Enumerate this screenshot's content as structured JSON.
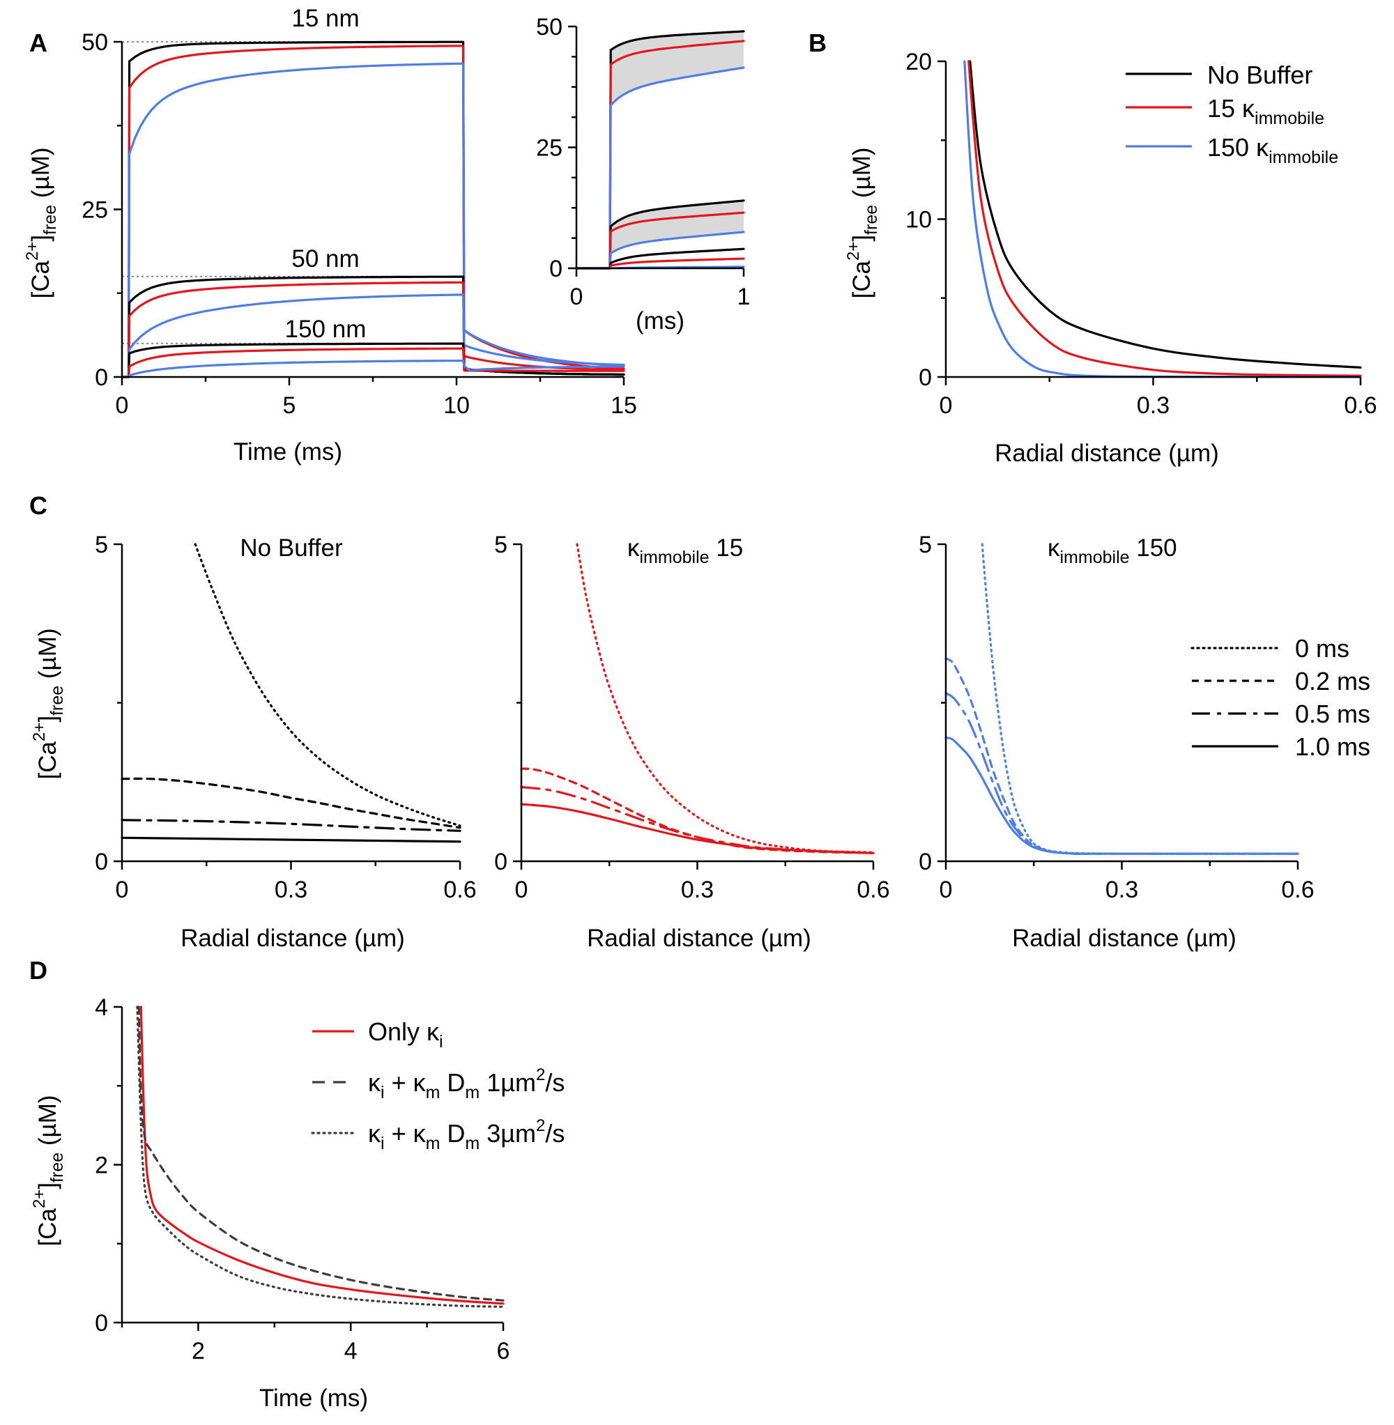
{
  "colors": {
    "nobuf": "#000000",
    "k15": "#e3171b",
    "k150": "#4e7ee5",
    "dark": "#3d3d3d",
    "shade": "#d9d9d9",
    "ref": "#888888"
  },
  "panel_letters": {
    "A": "A",
    "B": "B",
    "C": "C",
    "D": "D"
  },
  "chart_data": [
    {
      "id": "A-main",
      "type": "line",
      "xlabel": "Time (ms)",
      "xlim": [
        0,
        15
      ],
      "xticks": [
        "0",
        "5",
        "10",
        "15"
      ],
      "ylim": [
        0,
        50
      ],
      "yticks": [
        "0",
        "25",
        "50"
      ],
      "annotations": [
        {
          "text": "15 nm",
          "x": 6,
          "y": 52.5
        },
        {
          "text": "50 nm",
          "x": 6,
          "y": 17.5
        },
        {
          "text": "150 nm",
          "x": 6,
          "y": 7.3
        }
      ],
      "reference_lines": [
        50,
        15,
        5
      ],
      "series": [
        {
          "name": "No Buffer 15 nm",
          "color": "nobuf",
          "pulse": [
            0.2,
            10.2
          ],
          "plateau": [
            47.0,
            49.5,
            50.0
          ],
          "decay_end": 0.3
        },
        {
          "name": "15 κ 15 nm",
          "color": "k15",
          "pulse": [
            0.2,
            10.2
          ],
          "plateau": [
            43.0,
            47.0,
            49.5
          ],
          "decay_end": 0.8
        },
        {
          "name": "150 κ 15 nm",
          "color": "k150",
          "pulse": [
            0.2,
            10.2
          ],
          "plateau": [
            33.0,
            41.0,
            47.0
          ],
          "decay_end": 1.3
        },
        {
          "name": "No Buffer 50 nm",
          "color": "nobuf",
          "pulse": [
            0.2,
            10.2
          ],
          "plateau": [
            11.0,
            14.0,
            15.0
          ],
          "decay_end": 0.3
        },
        {
          "name": "15 κ 50 nm",
          "color": "k15",
          "pulse": [
            0.2,
            10.2
          ],
          "plateau": [
            9.0,
            12.0,
            14.2
          ],
          "decay_end": 0.9
        },
        {
          "name": "150 κ 50 nm",
          "color": "k150",
          "pulse": [
            0.2,
            10.2
          ],
          "plateau": [
            4.0,
            7.0,
            12.5
          ],
          "decay_end": 1.6
        },
        {
          "name": "No Buffer 150 nm",
          "color": "nobuf",
          "pulse": [
            0.2,
            10.2
          ],
          "plateau": [
            3.5,
            4.5,
            5.0
          ],
          "decay_end": 0.3
        },
        {
          "name": "15 κ 150 nm",
          "color": "k15",
          "pulse": [
            0.2,
            10.2
          ],
          "plateau": [
            1.5,
            3.0,
            4.3
          ],
          "decay_end": 0.9
        },
        {
          "name": "150 κ 150 nm",
          "color": "k150",
          "pulse": [
            0.2,
            10.2
          ],
          "plateau": [
            0.2,
            0.8,
            2.5
          ],
          "decay_end": 1.6
        }
      ]
    },
    {
      "id": "A-inset",
      "type": "line",
      "xlabel": "(ms)",
      "xlim": [
        0,
        1
      ],
      "xticks": [
        "0",
        "1"
      ],
      "ylim": [
        0,
        50
      ],
      "yticks": [
        "0",
        "25",
        "50"
      ],
      "series": [
        {
          "name": "No Buffer 15 nm",
          "color": "nobuf",
          "onset": 0.2,
          "values": [
            45.0,
            47.5,
            49.0
          ]
        },
        {
          "name": "15 κ 15 nm",
          "color": "k15",
          "onset": 0.2,
          "values": [
            42.0,
            44.5,
            47.0
          ]
        },
        {
          "name": "150 κ 15 nm",
          "color": "k150",
          "onset": 0.2,
          "values": [
            33.5,
            37.0,
            41.5
          ]
        },
        {
          "name": "No Buffer 50 nm",
          "color": "nobuf",
          "onset": 0.2,
          "values": [
            8.5,
            11.5,
            14.0
          ]
        },
        {
          "name": "15 κ 50 nm",
          "color": "k15",
          "onset": 0.2,
          "values": [
            7.5,
            9.5,
            11.5
          ]
        },
        {
          "name": "150 κ 50 nm",
          "color": "k150",
          "onset": 0.2,
          "values": [
            3.0,
            5.0,
            7.5
          ]
        },
        {
          "name": "No Buffer 150 nm",
          "color": "nobuf",
          "onset": 0.2,
          "values": [
            1.0,
            2.5,
            4.0
          ]
        },
        {
          "name": "15 κ 150 nm",
          "color": "k15",
          "onset": 0.2,
          "values": [
            0.5,
            1.2,
            2.0
          ]
        },
        {
          "name": "150 κ 150 nm",
          "color": "k150",
          "onset": 0.2,
          "values": [
            0.0,
            0.1,
            0.3
          ]
        }
      ]
    },
    {
      "id": "B",
      "type": "line",
      "xlabel": "Radial distance (µm)",
      "xlim": [
        0,
        0.6
      ],
      "xticks": [
        "0",
        "0.3",
        "0.6"
      ],
      "ylim": [
        0,
        20
      ],
      "yticks": [
        "0",
        "10",
        "20"
      ],
      "legend": [
        {
          "label": "No Buffer",
          "color": "nobuf"
        },
        {
          "label": "15 ",
          "sub": "immobile",
          "color": "k15"
        },
        {
          "label": "150 ",
          "sub": "immobile",
          "color": "k150"
        }
      ],
      "series": [
        {
          "name": "No Buffer",
          "color": "nobuf",
          "x": [
            0.035,
            0.05,
            0.075,
            0.1,
            0.15,
            0.2,
            0.3,
            0.4,
            0.5,
            0.6
          ],
          "y": [
            20,
            13.6,
            9.0,
            6.6,
            4.2,
            3.0,
            1.8,
            1.2,
            0.85,
            0.6
          ]
        },
        {
          "name": "15 κ immobile",
          "color": "k15",
          "x": [
            0.033,
            0.05,
            0.075,
            0.1,
            0.15,
            0.2,
            0.3,
            0.4,
            0.5,
            0.6
          ],
          "y": [
            20,
            11.5,
            6.8,
            4.5,
            2.2,
            1.2,
            0.45,
            0.2,
            0.12,
            0.08
          ]
        },
        {
          "name": "150 κ immobile",
          "color": "k150",
          "x": [
            0.027,
            0.04,
            0.06,
            0.08,
            0.1,
            0.13,
            0.16,
            0.2,
            0.3,
            0.6
          ],
          "y": [
            20,
            11.0,
            5.5,
            3.0,
            1.6,
            0.6,
            0.25,
            0.08,
            0.02,
            0.0
          ]
        }
      ]
    },
    {
      "id": "C-nobuffer",
      "type": "line",
      "title": "No Buffer",
      "xlabel": "Radial distance (µm)",
      "xlim": [
        0,
        0.6
      ],
      "xticks": [
        "0",
        "0.3",
        "0.6"
      ],
      "ylim": [
        0,
        5
      ],
      "yticks": [
        "0",
        "5"
      ],
      "series": [
        {
          "name": "0 ms",
          "style": "dotted",
          "color": "nobuf",
          "x": [
            0.13,
            0.16,
            0.2,
            0.25,
            0.3,
            0.35,
            0.4,
            0.45,
            0.5,
            0.55,
            0.6
          ],
          "y": [
            5.0,
            4.3,
            3.45,
            2.65,
            2.05,
            1.62,
            1.3,
            1.05,
            0.86,
            0.7,
            0.56
          ]
        },
        {
          "name": "0.2 ms",
          "style": "dashed",
          "color": "nobuf",
          "x": [
            0,
            0.05,
            0.1,
            0.15,
            0.2,
            0.25,
            0.3,
            0.35,
            0.4,
            0.45,
            0.5,
            0.55,
            0.6
          ],
          "y": [
            1.3,
            1.3,
            1.27,
            1.22,
            1.16,
            1.09,
            1.0,
            0.92,
            0.83,
            0.75,
            0.67,
            0.6,
            0.53
          ]
        },
        {
          "name": "0.5 ms",
          "style": "dashdot",
          "color": "nobuf",
          "x": [
            0,
            0.1,
            0.2,
            0.3,
            0.4,
            0.5,
            0.6
          ],
          "y": [
            0.65,
            0.64,
            0.62,
            0.59,
            0.55,
            0.51,
            0.48
          ]
        },
        {
          "name": "1.0 ms",
          "style": "solid",
          "color": "nobuf",
          "x": [
            0,
            0.1,
            0.2,
            0.3,
            0.4,
            0.5,
            0.6
          ],
          "y": [
            0.37,
            0.36,
            0.35,
            0.34,
            0.33,
            0.32,
            0.31
          ]
        }
      ]
    },
    {
      "id": "C-k15",
      "type": "line",
      "title": " 15",
      "title_sub": "immobile",
      "xlabel": "Radial distance (µm)",
      "xlim": [
        0,
        0.6
      ],
      "xticks": [
        "0",
        "0.3",
        "0.6"
      ],
      "ylim": [
        0,
        5
      ],
      "yticks": [
        "0",
        "5"
      ],
      "series": [
        {
          "name": "0 ms",
          "style": "dotted",
          "color": "k15",
          "x": [
            0.095,
            0.11,
            0.13,
            0.15,
            0.18,
            0.21,
            0.25,
            0.3,
            0.35,
            0.4,
            0.45,
            0.5,
            0.55,
            0.6
          ],
          "y": [
            5.0,
            4.2,
            3.4,
            2.75,
            2.05,
            1.55,
            1.08,
            0.7,
            0.45,
            0.3,
            0.22,
            0.17,
            0.15,
            0.14
          ]
        },
        {
          "name": "0.2 ms",
          "style": "dashed",
          "color": "k15",
          "x": [
            0,
            0.02,
            0.05,
            0.1,
            0.15,
            0.2,
            0.25,
            0.3,
            0.35,
            0.4,
            0.5,
            0.6
          ],
          "y": [
            1.46,
            1.45,
            1.38,
            1.2,
            0.97,
            0.74,
            0.53,
            0.38,
            0.27,
            0.2,
            0.15,
            0.13
          ]
        },
        {
          "name": "0.5 ms",
          "style": "dashdot",
          "color": "k15",
          "x": [
            0,
            0.05,
            0.1,
            0.15,
            0.2,
            0.25,
            0.3,
            0.35,
            0.4,
            0.5,
            0.6
          ],
          "y": [
            1.17,
            1.12,
            1.0,
            0.84,
            0.67,
            0.51,
            0.38,
            0.29,
            0.22,
            0.16,
            0.13
          ]
        },
        {
          "name": "1.0 ms",
          "style": "solid",
          "color": "k15",
          "x": [
            0,
            0.05,
            0.1,
            0.15,
            0.2,
            0.25,
            0.3,
            0.35,
            0.4,
            0.5,
            0.6
          ],
          "y": [
            0.9,
            0.86,
            0.78,
            0.67,
            0.55,
            0.44,
            0.34,
            0.27,
            0.21,
            0.16,
            0.13
          ]
        }
      ]
    },
    {
      "id": "C-k150",
      "type": "line",
      "title": " 150",
      "title_sub": "immobile",
      "xlabel": "Radial distance (µm)",
      "xlim": [
        0,
        0.6
      ],
      "xticks": [
        "0",
        "0.3",
        "0.6"
      ],
      "ylim": [
        0,
        5
      ],
      "yticks": [
        "0",
        "5"
      ],
      "legend": [
        {
          "label": "0 ms",
          "style": "dotted"
        },
        {
          "label": "0.2 ms",
          "style": "dashed"
        },
        {
          "label": "0.5 ms",
          "style": "dashdot"
        },
        {
          "label": "1.0 ms",
          "style": "solid"
        }
      ],
      "series": [
        {
          "name": "0 ms",
          "style": "dotted",
          "color": "k150",
          "x": [
            0.062,
            0.07,
            0.08,
            0.09,
            0.1,
            0.11,
            0.12,
            0.14,
            0.16,
            0.2,
            0.3,
            0.6
          ],
          "y": [
            5.0,
            4.1,
            3.1,
            2.3,
            1.65,
            1.15,
            0.8,
            0.4,
            0.22,
            0.14,
            0.12,
            0.12
          ]
        },
        {
          "name": "0.2 ms",
          "style": "dashed",
          "color": "k150",
          "x": [
            0,
            0.01,
            0.02,
            0.04,
            0.06,
            0.08,
            0.1,
            0.12,
            0.15,
            0.2,
            0.3,
            0.6
          ],
          "y": [
            3.2,
            3.15,
            3.0,
            2.6,
            2.05,
            1.45,
            0.95,
            0.55,
            0.25,
            0.13,
            0.12,
            0.12
          ]
        },
        {
          "name": "0.5 ms",
          "style": "dashdot",
          "color": "k150",
          "x": [
            0,
            0.01,
            0.02,
            0.04,
            0.06,
            0.08,
            0.1,
            0.12,
            0.15,
            0.2,
            0.3,
            0.6
          ],
          "y": [
            2.65,
            2.6,
            2.5,
            2.2,
            1.75,
            1.25,
            0.8,
            0.5,
            0.24,
            0.13,
            0.12,
            0.12
          ]
        },
        {
          "name": "1.0 ms",
          "style": "solid",
          "color": "k150",
          "x": [
            0,
            0.01,
            0.02,
            0.04,
            0.06,
            0.08,
            0.1,
            0.12,
            0.15,
            0.2,
            0.3,
            0.6
          ],
          "y": [
            1.95,
            1.93,
            1.85,
            1.65,
            1.35,
            1.0,
            0.68,
            0.43,
            0.22,
            0.13,
            0.12,
            0.12
          ]
        }
      ]
    },
    {
      "id": "D",
      "type": "line",
      "xlabel": "Time (ms)",
      "xlim": [
        1,
        6
      ],
      "xticks": [
        "2",
        "4",
        "6"
      ],
      "xtick_values": [
        2,
        4,
        6
      ],
      "ylim": [
        0,
        4
      ],
      "yticks": [
        "0",
        "2",
        "4"
      ],
      "legend": [
        {
          "style": "solid",
          "color": "k15",
          "parts": [
            "Only "
          ],
          "sub1": "i"
        },
        {
          "style": "dashed",
          "color": "dark",
          "parts": [
            " + ",
            " D",
            " 1µm",
            "/s"
          ],
          "sub1": "i",
          "sub2": "m",
          "sub3": "m",
          "sup": "2"
        },
        {
          "style": "dotted",
          "color": "dark",
          "parts": [
            " + ",
            " D",
            " 3µm",
            "/s"
          ],
          "sub1": "i",
          "sub2": "m",
          "sub3": "m",
          "sup": "2"
        }
      ],
      "series": [
        {
          "name": "Only κi",
          "style": "solid",
          "color": "k15",
          "x": [
            1.25,
            1.28,
            1.32,
            1.38,
            1.45,
            1.6,
            1.8,
            2.0,
            2.5,
            3.0,
            3.5,
            4.0,
            4.5,
            5.0,
            5.5,
            6.0
          ],
          "y": [
            4.0,
            2.9,
            2.0,
            1.6,
            1.42,
            1.28,
            1.14,
            1.02,
            0.8,
            0.63,
            0.5,
            0.42,
            0.36,
            0.31,
            0.27,
            0.24
          ]
        },
        {
          "name": "κi + κm Dm 1µm²/s",
          "style": "dashed",
          "color": "dark",
          "x": [
            1.22,
            1.25,
            1.3,
            1.4,
            1.6,
            1.8,
            2.0,
            2.5,
            3.0,
            3.5,
            4.0,
            4.5,
            5.0,
            5.5,
            6.0
          ],
          "y": [
            4.0,
            2.9,
            2.35,
            2.15,
            1.85,
            1.6,
            1.4,
            1.05,
            0.82,
            0.66,
            0.54,
            0.45,
            0.38,
            0.32,
            0.28
          ]
        },
        {
          "name": "κi + κm Dm 3µm²/s",
          "style": "dotted",
          "color": "dark",
          "x": [
            1.2,
            1.25,
            1.3,
            1.4,
            1.6,
            1.8,
            2.0,
            2.5,
            3.0,
            3.5,
            4.0,
            4.5,
            5.0,
            5.5,
            6.0
          ],
          "y": [
            4.0,
            2.5,
            1.7,
            1.4,
            1.18,
            1.0,
            0.86,
            0.6,
            0.45,
            0.36,
            0.3,
            0.26,
            0.23,
            0.21,
            0.2
          ]
        }
      ]
    }
  ]
}
